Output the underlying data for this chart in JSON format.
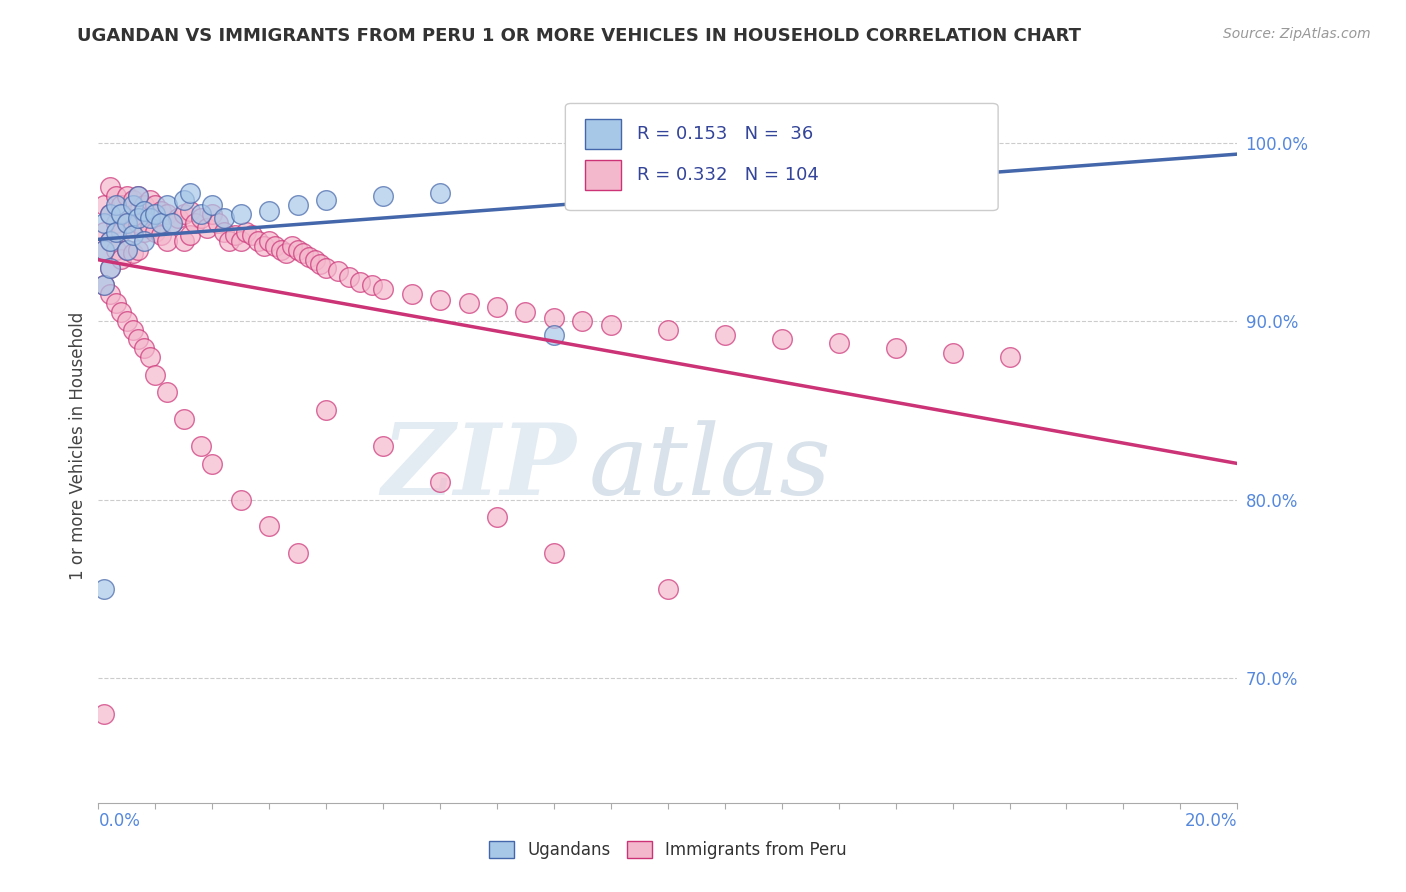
{
  "title": "UGANDAN VS IMMIGRANTS FROM PERU 1 OR MORE VEHICLES IN HOUSEHOLD CORRELATION CHART",
  "source": "Source: ZipAtlas.com",
  "ylabel": "1 or more Vehicles in Household",
  "ytick_labels": [
    "100.0%",
    "90.0%",
    "80.0%",
    "70.0%"
  ],
  "ytick_values": [
    1.0,
    0.9,
    0.8,
    0.7
  ],
  "xlim": [
    0.0,
    0.2
  ],
  "ylim": [
    0.63,
    1.03
  ],
  "ugandan_R": 0.153,
  "ugandan_N": 36,
  "peru_R": 0.332,
  "peru_N": 104,
  "blue_color": "#a8c8e8",
  "pink_color": "#f4b8cc",
  "blue_line_color": "#4466aa",
  "pink_line_color": "#cc3377",
  "watermark_zip": "ZIP",
  "watermark_atlas": "atlas",
  "legend_labels": [
    "Ugandans",
    "Immigrants from Peru"
  ],
  "ugandan_x": [
    0.001,
    0.001,
    0.001,
    0.002,
    0.002,
    0.002,
    0.003,
    0.003,
    0.004,
    0.005,
    0.005,
    0.006,
    0.006,
    0.007,
    0.007,
    0.008,
    0.008,
    0.009,
    0.01,
    0.011,
    0.012,
    0.013,
    0.015,
    0.016,
    0.018,
    0.02,
    0.022,
    0.025,
    0.03,
    0.035,
    0.04,
    0.05,
    0.06,
    0.08,
    0.1,
    0.001
  ],
  "ugandan_y": [
    0.955,
    0.94,
    0.92,
    0.96,
    0.945,
    0.93,
    0.965,
    0.95,
    0.96,
    0.955,
    0.94,
    0.965,
    0.948,
    0.97,
    0.958,
    0.962,
    0.945,
    0.958,
    0.96,
    0.955,
    0.965,
    0.955,
    0.968,
    0.972,
    0.96,
    0.965,
    0.958,
    0.96,
    0.962,
    0.965,
    0.968,
    0.97,
    0.972,
    0.892,
    0.98,
    0.75
  ],
  "peru_x": [
    0.001,
    0.001,
    0.001,
    0.002,
    0.002,
    0.002,
    0.002,
    0.003,
    0.003,
    0.003,
    0.004,
    0.004,
    0.004,
    0.005,
    0.005,
    0.005,
    0.006,
    0.006,
    0.006,
    0.007,
    0.007,
    0.007,
    0.008,
    0.008,
    0.009,
    0.009,
    0.01,
    0.01,
    0.011,
    0.011,
    0.012,
    0.012,
    0.013,
    0.014,
    0.015,
    0.015,
    0.016,
    0.016,
    0.017,
    0.018,
    0.019,
    0.02,
    0.021,
    0.022,
    0.023,
    0.024,
    0.025,
    0.026,
    0.027,
    0.028,
    0.029,
    0.03,
    0.031,
    0.032,
    0.033,
    0.034,
    0.035,
    0.036,
    0.037,
    0.038,
    0.039,
    0.04,
    0.042,
    0.044,
    0.046,
    0.048,
    0.05,
    0.055,
    0.06,
    0.065,
    0.07,
    0.075,
    0.08,
    0.085,
    0.09,
    0.1,
    0.11,
    0.12,
    0.13,
    0.14,
    0.15,
    0.16,
    0.001,
    0.002,
    0.003,
    0.004,
    0.005,
    0.006,
    0.007,
    0.008,
    0.009,
    0.01,
    0.012,
    0.015,
    0.018,
    0.02,
    0.025,
    0.03,
    0.035,
    0.04,
    0.05,
    0.06,
    0.07,
    0.08,
    0.1,
    0.001
  ],
  "peru_y": [
    0.965,
    0.95,
    0.94,
    0.975,
    0.96,
    0.945,
    0.93,
    0.97,
    0.955,
    0.94,
    0.965,
    0.95,
    0.935,
    0.97,
    0.955,
    0.94,
    0.968,
    0.952,
    0.938,
    0.97,
    0.955,
    0.94,
    0.965,
    0.95,
    0.968,
    0.952,
    0.965,
    0.95,
    0.962,
    0.948,
    0.96,
    0.945,
    0.955,
    0.958,
    0.96,
    0.945,
    0.962,
    0.948,
    0.955,
    0.958,
    0.952,
    0.96,
    0.955,
    0.95,
    0.945,
    0.948,
    0.945,
    0.95,
    0.948,
    0.945,
    0.942,
    0.945,
    0.942,
    0.94,
    0.938,
    0.942,
    0.94,
    0.938,
    0.936,
    0.934,
    0.932,
    0.93,
    0.928,
    0.925,
    0.922,
    0.92,
    0.918,
    0.915,
    0.912,
    0.91,
    0.908,
    0.905,
    0.902,
    0.9,
    0.898,
    0.895,
    0.892,
    0.89,
    0.888,
    0.885,
    0.882,
    0.88,
    0.92,
    0.915,
    0.91,
    0.905,
    0.9,
    0.895,
    0.89,
    0.885,
    0.88,
    0.87,
    0.86,
    0.845,
    0.83,
    0.82,
    0.8,
    0.785,
    0.77,
    0.85,
    0.83,
    0.81,
    0.79,
    0.77,
    0.75,
    0.68
  ]
}
